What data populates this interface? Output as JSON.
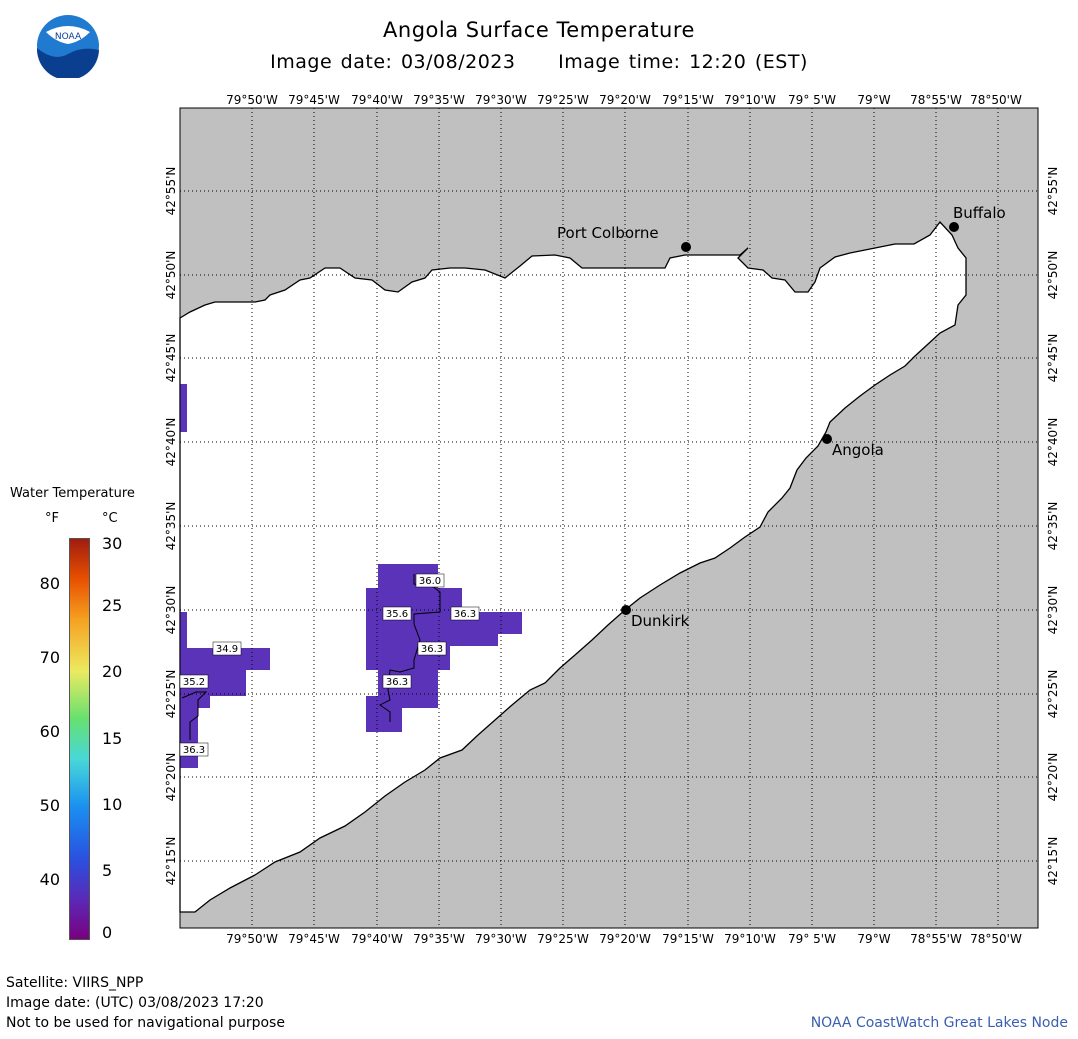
{
  "header": {
    "title": "Angola Surface Temperature",
    "subtitle": "Image date: 03/08/2023     Image time: 12:20 (EST)"
  },
  "logo": {
    "icon": "noaa-logo-icon",
    "text": "NOAA"
  },
  "axes": {
    "lon_labels": [
      "79°50'W",
      "79°45'W",
      "79°40'W",
      "79°35'W",
      "79°30'W",
      "79°25'W",
      "79°20'W",
      "79°15'W",
      "79°10'W",
      "79° 5'W",
      "79°W",
      "78°55'W",
      "78°50'W"
    ],
    "lat_labels": [
      "42°55'N",
      "42°50'N",
      "42°45'N",
      "42°40'N",
      "42°35'N",
      "42°30'N",
      "42°25'N",
      "42°20'N",
      "42°15'N"
    ]
  },
  "cities": [
    {
      "name": "Port Colborne"
    },
    {
      "name": "Buffalo"
    },
    {
      "name": "Angola"
    },
    {
      "name": "Dunkirk"
    }
  ],
  "temperature_labels": [
    "36.0",
    "35.6",
    "36.3",
    "36.3",
    "36.3",
    "34.9",
    "35.2",
    "36.3"
  ],
  "legend": {
    "title": "Water Temperature",
    "unit_f": "°F",
    "unit_c": "°C",
    "f_ticks": [
      "80",
      "70",
      "60",
      "50",
      "40"
    ],
    "c_ticks": [
      "30",
      "25",
      "20",
      "15",
      "10",
      "5",
      "0"
    ]
  },
  "footer": {
    "satellite": "Satellite: VIIRS_NPP",
    "utc_date": "Image date: (UTC) 03/08/2023  17:20",
    "disclaimer": "Not to be used for navigational purpose",
    "credit": "NOAA CoastWatch Great Lakes Node"
  },
  "colors": {
    "land": "#c0c0c0",
    "water": "#ffffff",
    "sst_low": "#5a33b8",
    "credit": "#3a5fb0"
  }
}
